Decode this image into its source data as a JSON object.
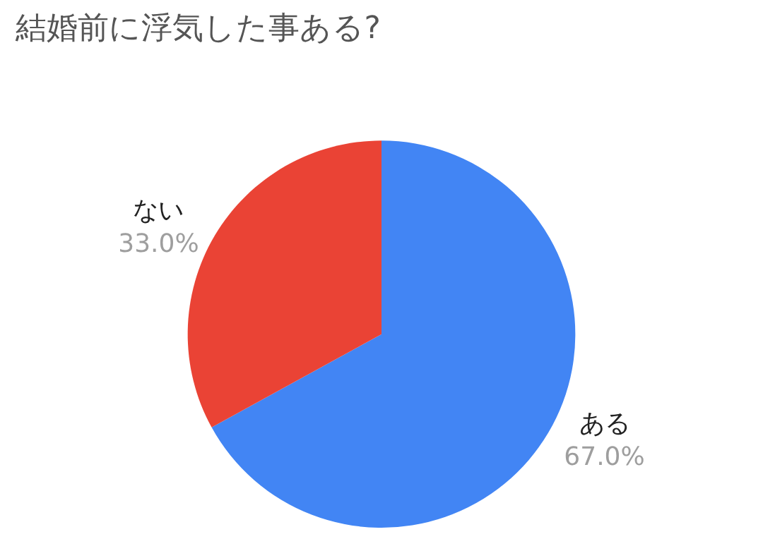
{
  "chart_data": {
    "type": "pie",
    "title": "結婚前に浮気した事ある?",
    "categories": [
      "ある",
      "ない"
    ],
    "values": [
      67.0,
      33.0
    ],
    "value_labels": [
      "67.0%",
      "33.0%"
    ],
    "colors": [
      "#4285f4",
      "#ea4335"
    ],
    "legend": false
  }
}
